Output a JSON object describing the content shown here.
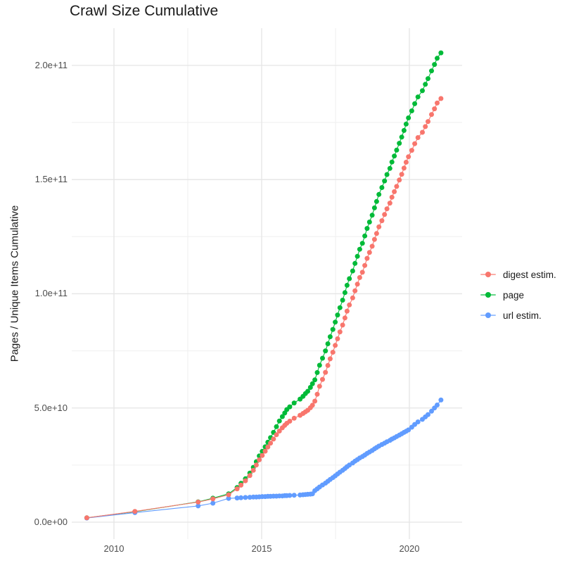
{
  "chart_data": {
    "type": "scatter",
    "title": "Crawl Size Cumulative",
    "ylabel": "Pages / Unique Items Cumulative",
    "xlabel": "",
    "legend_position": "right",
    "grid": true,
    "xlim": [
      2008.571,
      2021.786
    ],
    "ylim": [
      -7400000000.0,
      216300000000.0
    ],
    "x_ticks": [
      {
        "value": 2010,
        "label": "2010"
      },
      {
        "value": 2015,
        "label": "2015"
      },
      {
        "value": 2020,
        "label": "2020"
      }
    ],
    "x_minor": [
      2012.5,
      2017.5
    ],
    "y_ticks": [
      {
        "value": 0.0,
        "label": "0.0e+00"
      },
      {
        "value": 50000000000.0,
        "label": "5.0e+10"
      },
      {
        "value": 100000000000.0,
        "label": "1.0e+11"
      },
      {
        "value": 150000000000.0,
        "label": "1.5e+11"
      },
      {
        "value": 200000000000.0,
        "label": "2.0e+11"
      }
    ],
    "y_minor": [
      25000000000.0,
      75000000000.0,
      125000000000.0,
      175000000000.0
    ],
    "colors": {
      "major_grid": "#E5E5E5",
      "minor_grid": "#EFEFEF",
      "tick_text": "#4D4D4D",
      "text": "#1A1A1A",
      "background": "#FFFFFF"
    },
    "draw_order": [
      1,
      2,
      0
    ],
    "series": [
      {
        "name": "digest estim.",
        "color": "#F8766D",
        "points": [
          [
            2009.08,
            1900000000.0
          ],
          [
            2010.71,
            4700000000.0
          ],
          [
            2012.85,
            8800000000.0
          ],
          [
            2013.35,
            10200000000.0
          ],
          [
            2013.88,
            12000000000.0
          ],
          [
            2014.17,
            14600000000.0
          ],
          [
            2014.3,
            16200000000.0
          ],
          [
            2014.45,
            18100000000.0
          ],
          [
            2014.6,
            20400000000.0
          ],
          [
            2014.72,
            22700000000.0
          ],
          [
            2014.82,
            25000000000.0
          ],
          [
            2014.92,
            27300000000.0
          ],
          [
            2015.02,
            29200000000.0
          ],
          [
            2015.12,
            31100000000.0
          ],
          [
            2015.21,
            32900000000.0
          ],
          [
            2015.3,
            34600000000.0
          ],
          [
            2015.4,
            36400000000.0
          ],
          [
            2015.5,
            38300000000.0
          ],
          [
            2015.6,
            39900000000.0
          ],
          [
            2015.7,
            41300000000.0
          ],
          [
            2015.78,
            42400000000.0
          ],
          [
            2015.85,
            43300000000.0
          ],
          [
            2015.95,
            44200000000.0
          ],
          [
            2016.1,
            45500000000.0
          ],
          [
            2016.3,
            46800000000.0
          ],
          [
            2016.4,
            47600000000.0
          ],
          [
            2016.48,
            48300000000.0
          ],
          [
            2016.56,
            49000000000.0
          ],
          [
            2016.65,
            50100000000.0
          ],
          [
            2016.72,
            51200000000.0
          ],
          [
            2016.8,
            53000000000.0
          ],
          [
            2016.88,
            56000000000.0
          ],
          [
            2016.96,
            59500000000.0
          ],
          [
            2017.06,
            62500000000.0
          ],
          [
            2017.16,
            65600000000.0
          ],
          [
            2017.24,
            68600000000.0
          ],
          [
            2017.32,
            71500000000.0
          ],
          [
            2017.41,
            74400000000.0
          ],
          [
            2017.49,
            77400000000.0
          ],
          [
            2017.57,
            80300000000.0
          ],
          [
            2017.65,
            83300000000.0
          ],
          [
            2017.74,
            86300000000.0
          ],
          [
            2017.82,
            89400000000.0
          ],
          [
            2017.89,
            92400000000.0
          ],
          [
            2017.97,
            95100000000.0
          ],
          [
            2018.08,
            98200000000.0
          ],
          [
            2018.16,
            101300000000.0
          ],
          [
            2018.24,
            104200000000.0
          ],
          [
            2018.32,
            107100000000.0
          ],
          [
            2018.41,
            109400000000.0
          ],
          [
            2018.49,
            112400000000.0
          ],
          [
            2018.57,
            115500000000.0
          ],
          [
            2018.65,
            118100000000.0
          ],
          [
            2018.74,
            120800000000.0
          ],
          [
            2018.82,
            123800000000.0
          ],
          [
            2018.89,
            126400000000.0
          ],
          [
            2018.97,
            129300000000.0
          ],
          [
            2019.07,
            132000000000.0
          ],
          [
            2019.16,
            134700000000.0
          ],
          [
            2019.24,
            137200000000.0
          ],
          [
            2019.34,
            139700000000.0
          ],
          [
            2019.41,
            142300000000.0
          ],
          [
            2019.49,
            144700000000.0
          ],
          [
            2019.57,
            147000000000.0
          ],
          [
            2019.66,
            149800000000.0
          ],
          [
            2019.74,
            152300000000.0
          ],
          [
            2019.82,
            155000000000.0
          ],
          [
            2019.89,
            157600000000.0
          ],
          [
            2019.97,
            160000000000.0
          ],
          [
            2020.08,
            162800000000.0
          ],
          [
            2020.18,
            165700000000.0
          ],
          [
            2020.29,
            168400000000.0
          ],
          [
            2020.44,
            170700000000.0
          ],
          [
            2020.54,
            173200000000.0
          ],
          [
            2020.63,
            175400000000.0
          ],
          [
            2020.75,
            178500000000.0
          ],
          [
            2020.85,
            181000000000.0
          ],
          [
            2020.94,
            183500000000.0
          ],
          [
            2021.07,
            185500000000.0
          ]
        ]
      },
      {
        "name": "page",
        "color": "#00BA38",
        "points": [
          [
            2009.08,
            1900000000.0
          ],
          [
            2010.71,
            4600000000.0
          ],
          [
            2012.85,
            8900000000.0
          ],
          [
            2013.35,
            10500000000.0
          ],
          [
            2013.88,
            12400000000.0
          ],
          [
            2014.17,
            15200000000.0
          ],
          [
            2014.3,
            17000000000.0
          ],
          [
            2014.45,
            19000000000.0
          ],
          [
            2014.6,
            21500000000.0
          ],
          [
            2014.72,
            24000000000.0
          ],
          [
            2014.82,
            26500000000.0
          ],
          [
            2014.92,
            29000000000.0
          ],
          [
            2015.02,
            31000000000.0
          ],
          [
            2015.12,
            33000000000.0
          ],
          [
            2015.21,
            35000000000.0
          ],
          [
            2015.3,
            37000000000.0
          ],
          [
            2015.4,
            39300000000.0
          ],
          [
            2015.5,
            41800000000.0
          ],
          [
            2015.6,
            44300000000.0
          ],
          [
            2015.7,
            46200000000.0
          ],
          [
            2015.78,
            47800000000.0
          ],
          [
            2015.85,
            49300000000.0
          ],
          [
            2015.95,
            50500000000.0
          ],
          [
            2016.1,
            52200000000.0
          ],
          [
            2016.3,
            53900000000.0
          ],
          [
            2016.4,
            55100000000.0
          ],
          [
            2016.48,
            56300000000.0
          ],
          [
            2016.56,
            57300000000.0
          ],
          [
            2016.65,
            59000000000.0
          ],
          [
            2016.72,
            60600000000.0
          ],
          [
            2016.8,
            62300000000.0
          ],
          [
            2016.88,
            65500000000.0
          ],
          [
            2016.96,
            68700000000.0
          ],
          [
            2017.06,
            71800000000.0
          ],
          [
            2017.16,
            75000000000.0
          ],
          [
            2017.24,
            78100000000.0
          ],
          [
            2017.32,
            81200000000.0
          ],
          [
            2017.41,
            84400000000.0
          ],
          [
            2017.49,
            87600000000.0
          ],
          [
            2017.57,
            90700000000.0
          ],
          [
            2017.65,
            93900000000.0
          ],
          [
            2017.74,
            97200000000.0
          ],
          [
            2017.82,
            100500000000.0
          ],
          [
            2017.89,
            103700000000.0
          ],
          [
            2017.97,
            106600000000.0
          ],
          [
            2018.08,
            110000000000.0
          ],
          [
            2018.16,
            113300000000.0
          ],
          [
            2018.24,
            116400000000.0
          ],
          [
            2018.32,
            119500000000.0
          ],
          [
            2018.41,
            122100000000.0
          ],
          [
            2018.49,
            125300000000.0
          ],
          [
            2018.57,
            128600000000.0
          ],
          [
            2018.65,
            131400000000.0
          ],
          [
            2018.74,
            134400000000.0
          ],
          [
            2018.82,
            137600000000.0
          ],
          [
            2018.89,
            140400000000.0
          ],
          [
            2018.97,
            143500000000.0
          ],
          [
            2019.07,
            146500000000.0
          ],
          [
            2019.16,
            149400000000.0
          ],
          [
            2019.24,
            152200000000.0
          ],
          [
            2019.34,
            154900000000.0
          ],
          [
            2019.41,
            157700000000.0
          ],
          [
            2019.49,
            160300000000.0
          ],
          [
            2019.57,
            162900000000.0
          ],
          [
            2019.66,
            165900000000.0
          ],
          [
            2019.74,
            168600000000.0
          ],
          [
            2019.82,
            171500000000.0
          ],
          [
            2019.89,
            174300000000.0
          ],
          [
            2019.97,
            177000000000.0
          ],
          [
            2020.08,
            180100000000.0
          ],
          [
            2020.18,
            183200000000.0
          ],
          [
            2020.29,
            186200000000.0
          ],
          [
            2020.44,
            188900000000.0
          ],
          [
            2020.54,
            191700000000.0
          ],
          [
            2020.63,
            194200000000.0
          ],
          [
            2020.75,
            197600000000.0
          ],
          [
            2020.85,
            200400000000.0
          ],
          [
            2020.94,
            203100000000.0
          ],
          [
            2021.07,
            205500000000.0
          ]
        ]
      },
      {
        "name": "url estim.",
        "color": "#619CFF",
        "points": [
          [
            2009.08,
            1800000000.0
          ],
          [
            2010.71,
            4200000000.0
          ],
          [
            2012.85,
            7100000000.0
          ],
          [
            2013.35,
            8300000000.0
          ],
          [
            2013.88,
            10400000000.0
          ],
          [
            2014.17,
            10600000000.0
          ],
          [
            2014.3,
            10700000000.0
          ],
          [
            2014.45,
            10800000000.0
          ],
          [
            2014.6,
            10900000000.0
          ],
          [
            2014.72,
            11000000000.0
          ],
          [
            2014.82,
            11000000000.0
          ],
          [
            2014.92,
            11100000000.0
          ],
          [
            2015.02,
            11200000000.0
          ],
          [
            2015.12,
            11200000000.0
          ],
          [
            2015.21,
            11300000000.0
          ],
          [
            2015.3,
            11300000000.0
          ],
          [
            2015.4,
            11400000000.0
          ],
          [
            2015.5,
            11400000000.0
          ],
          [
            2015.6,
            11500000000.0
          ],
          [
            2015.7,
            11500000000.0
          ],
          [
            2015.78,
            11600000000.0
          ],
          [
            2015.85,
            11600000000.0
          ],
          [
            2015.95,
            11700000000.0
          ],
          [
            2016.1,
            11800000000.0
          ],
          [
            2016.3,
            11900000000.0
          ],
          [
            2016.4,
            12000000000.0
          ],
          [
            2016.48,
            12100000000.0
          ],
          [
            2016.56,
            12200000000.0
          ],
          [
            2016.65,
            12300000000.0
          ],
          [
            2016.72,
            12400000000.0
          ],
          [
            2016.8,
            13800000000.0
          ],
          [
            2016.88,
            14600000000.0
          ],
          [
            2016.96,
            15400000000.0
          ],
          [
            2017.06,
            16300000000.0
          ],
          [
            2017.16,
            17100000000.0
          ],
          [
            2017.24,
            17900000000.0
          ],
          [
            2017.32,
            18700000000.0
          ],
          [
            2017.41,
            19500000000.0
          ],
          [
            2017.49,
            20300000000.0
          ],
          [
            2017.57,
            21100000000.0
          ],
          [
            2017.65,
            21900000000.0
          ],
          [
            2017.74,
            22700000000.0
          ],
          [
            2017.82,
            23500000000.0
          ],
          [
            2017.89,
            24300000000.0
          ],
          [
            2017.97,
            25000000000.0
          ],
          [
            2018.08,
            25900000000.0
          ],
          [
            2018.16,
            26700000000.0
          ],
          [
            2018.24,
            27400000000.0
          ],
          [
            2018.32,
            28100000000.0
          ],
          [
            2018.41,
            28700000000.0
          ],
          [
            2018.49,
            29400000000.0
          ],
          [
            2018.57,
            30100000000.0
          ],
          [
            2018.65,
            30700000000.0
          ],
          [
            2018.74,
            31400000000.0
          ],
          [
            2018.82,
            32100000000.0
          ],
          [
            2018.89,
            32700000000.0
          ],
          [
            2018.97,
            33300000000.0
          ],
          [
            2019.07,
            34000000000.0
          ],
          [
            2019.16,
            34600000000.0
          ],
          [
            2019.24,
            35200000000.0
          ],
          [
            2019.34,
            35800000000.0
          ],
          [
            2019.41,
            36400000000.0
          ],
          [
            2019.49,
            36900000000.0
          ],
          [
            2019.57,
            37500000000.0
          ],
          [
            2019.66,
            38100000000.0
          ],
          [
            2019.74,
            38700000000.0
          ],
          [
            2019.82,
            39300000000.0
          ],
          [
            2019.89,
            39800000000.0
          ],
          [
            2019.97,
            40400000000.0
          ],
          [
            2020.08,
            41600000000.0
          ],
          [
            2020.18,
            42800000000.0
          ],
          [
            2020.29,
            43900000000.0
          ],
          [
            2020.44,
            45000000000.0
          ],
          [
            2020.54,
            46100000000.0
          ],
          [
            2020.63,
            47100000000.0
          ],
          [
            2020.75,
            48600000000.0
          ],
          [
            2020.85,
            50000000000.0
          ],
          [
            2020.94,
            51300000000.0
          ],
          [
            2021.07,
            53500000000.0
          ]
        ]
      }
    ]
  }
}
